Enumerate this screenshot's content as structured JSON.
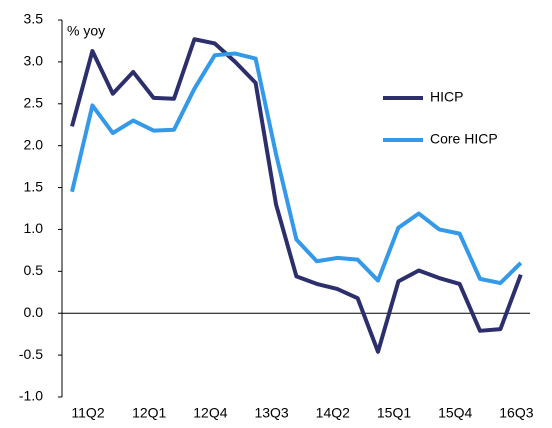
{
  "chart_data": {
    "type": "line",
    "annotation": "% yoy",
    "categories": [
      "11Q2",
      null,
      null,
      "12Q1",
      null,
      null,
      "12Q4",
      null,
      null,
      "13Q3",
      null,
      null,
      "14Q2",
      null,
      null,
      "15Q1",
      null,
      null,
      "15Q4",
      null,
      null,
      "16Q3",
      null
    ],
    "series": [
      {
        "name": "HICP",
        "color": "#2c2f6b",
        "values": [
          2.23,
          3.13,
          2.62,
          2.88,
          2.57,
          2.56,
          3.27,
          3.22,
          3.0,
          2.75,
          1.3,
          0.44,
          0.35,
          0.29,
          0.18,
          -0.46,
          0.38,
          0.51,
          0.42,
          0.35,
          -0.21,
          -0.19,
          0.46
        ]
      },
      {
        "name": "Core HICP",
        "color": "#3399e8",
        "values": [
          1.45,
          2.48,
          2.15,
          2.3,
          2.18,
          2.19,
          2.68,
          3.08,
          3.1,
          3.04,
          1.9,
          0.88,
          0.62,
          0.66,
          0.64,
          0.39,
          1.02,
          1.19,
          1.0,
          0.95,
          0.41,
          0.36,
          0.6
        ]
      }
    ],
    "ylim": [
      -1.0,
      3.5
    ],
    "yticks": [
      3.5,
      {
        "value": 3.0,
        "label": "3.0"
      },
      2.5,
      {
        "value": 2.0,
        "label": "2.0"
      },
      1.5,
      {
        "value": 1.0,
        "label": "1.0"
      },
      0.5,
      {
        "value": 0.0,
        "label": "0.0"
      },
      -0.5,
      {
        "value": -1.0,
        "label": "-1.0"
      }
    ],
    "legend": "right"
  }
}
